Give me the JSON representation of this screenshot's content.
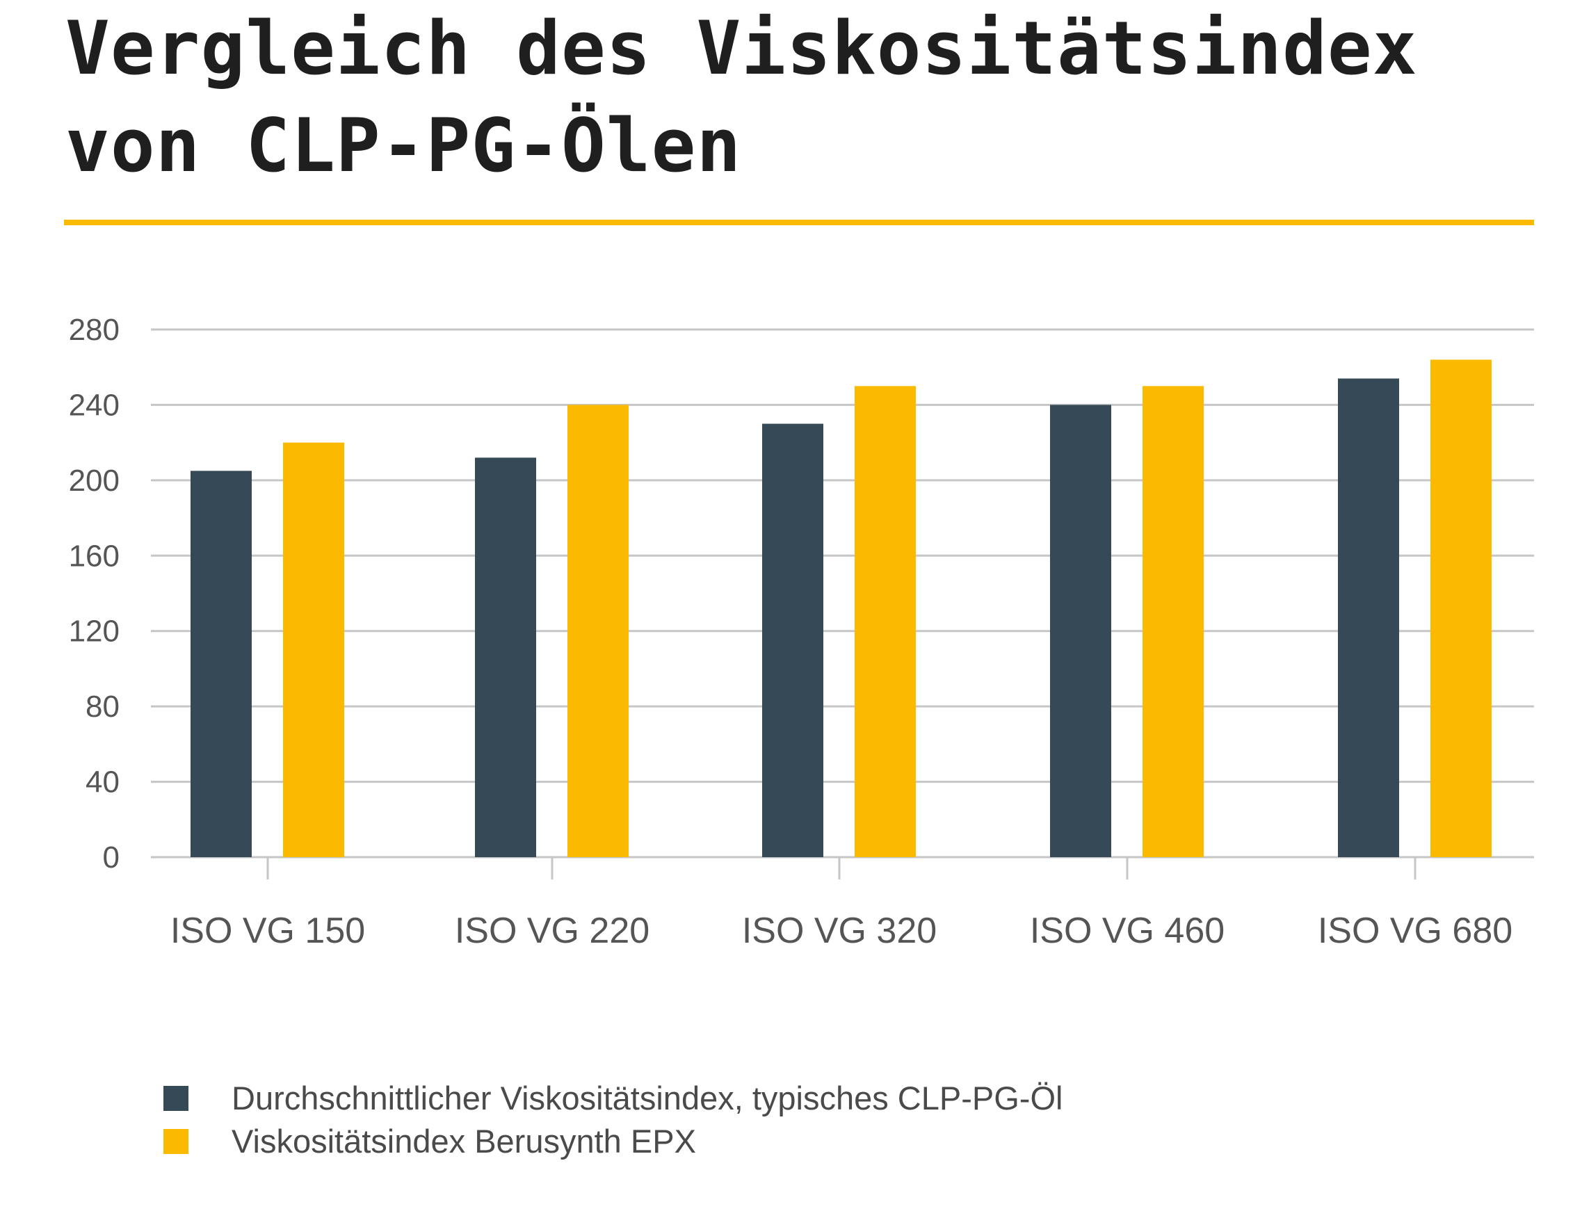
{
  "chart_data": {
    "type": "bar",
    "title": "Vergleich des Viskositätsindex von CLP-PG-Ölen",
    "categories": [
      "ISO VG 150",
      "ISO VG 220",
      "ISO VG 320",
      "ISO VG 460",
      "ISO VG 680"
    ],
    "series": [
      {
        "name": "Durchschnittlicher Viskositätsindex, typisches CLP-PG-Öl",
        "color": "#354a56",
        "values": [
          205,
          212,
          230,
          240,
          254
        ]
      },
      {
        "name": "Viskositätsindex Berusynth EPX",
        "color": "#fbb900",
        "values": [
          220,
          240,
          250,
          250,
          264
        ]
      }
    ],
    "ylim": [
      0,
      280
    ],
    "yticks": [
      "0",
      "40",
      "80",
      "120",
      "160",
      "200",
      "240",
      "280"
    ],
    "grid": true,
    "legend_position": "bottom-left",
    "accent_color": "#fbb900"
  }
}
